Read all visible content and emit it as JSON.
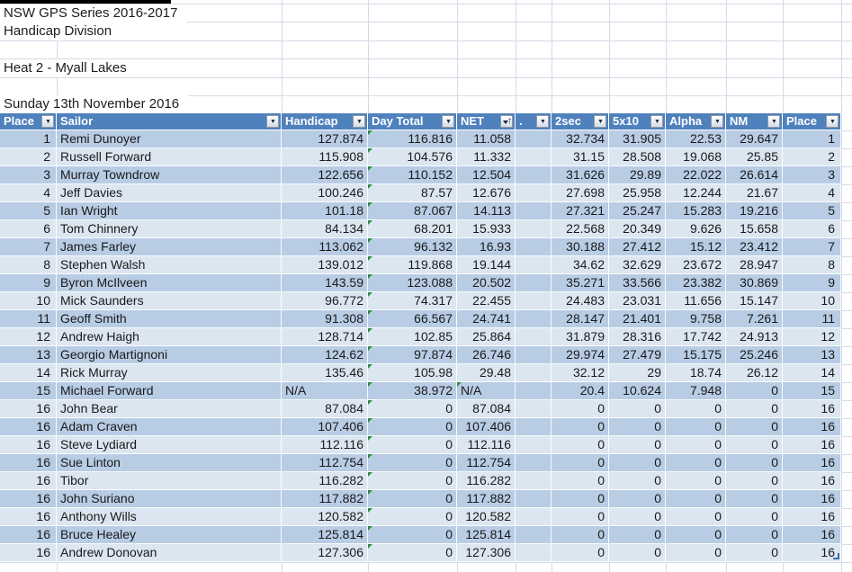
{
  "titles": {
    "series": "NSW GPS Series 2016-2017",
    "division": "Handicap Division",
    "heat": "Heat 2 - Myall Lakes",
    "date": "Sunday 13th November 2016"
  },
  "table": {
    "columns": [
      {
        "label": "Place",
        "filter": "dropdown"
      },
      {
        "label": "Sailor",
        "filter": "dropdown"
      },
      {
        "label": "Handicap",
        "filter": "dropdown"
      },
      {
        "label": "Day Total",
        "filter": "dropdown"
      },
      {
        "label": "NET",
        "filter": "sort-asc"
      },
      {
        "label": ".",
        "filter": "dropdown"
      },
      {
        "label": "2sec",
        "filter": "dropdown"
      },
      {
        "label": "5x10",
        "filter": "dropdown"
      },
      {
        "label": "Alpha",
        "filter": "dropdown"
      },
      {
        "label": "NM",
        "filter": "dropdown"
      },
      {
        "label": "Place",
        "filter": "dropdown"
      }
    ],
    "rows": [
      [
        "1",
        "Remi Dunoyer",
        "127.874",
        "116.816",
        "11.058",
        "",
        "32.734",
        "31.905",
        "22.53",
        "29.647",
        "1"
      ],
      [
        "2",
        "Russell Forward",
        "115.908",
        "104.576",
        "11.332",
        "",
        "31.15",
        "28.508",
        "19.068",
        "25.85",
        "2"
      ],
      [
        "3",
        "Murray Towndrow",
        "122.656",
        "110.152",
        "12.504",
        "",
        "31.626",
        "29.89",
        "22.022",
        "26.614",
        "3"
      ],
      [
        "4",
        "Jeff Davies",
        "100.246",
        "87.57",
        "12.676",
        "",
        "27.698",
        "25.958",
        "12.244",
        "21.67",
        "4"
      ],
      [
        "5",
        "Ian Wright",
        "101.18",
        "87.067",
        "14.113",
        "",
        "27.321",
        "25.247",
        "15.283",
        "19.216",
        "5"
      ],
      [
        "6",
        "Tom Chinnery",
        "84.134",
        "68.201",
        "15.933",
        "",
        "22.568",
        "20.349",
        "9.626",
        "15.658",
        "6"
      ],
      [
        "7",
        "James Farley",
        "113.062",
        "96.132",
        "16.93",
        "",
        "30.188",
        "27.412",
        "15.12",
        "23.412",
        "7"
      ],
      [
        "8",
        "Stephen Walsh",
        "139.012",
        "119.868",
        "19.144",
        "",
        "34.62",
        "32.629",
        "23.672",
        "28.947",
        "8"
      ],
      [
        "9",
        "Byron McIlveen",
        "143.59",
        "123.088",
        "20.502",
        "",
        "35.271",
        "33.566",
        "23.382",
        "30.869",
        "9"
      ],
      [
        "10",
        "Mick Saunders",
        "96.772",
        "74.317",
        "22.455",
        "",
        "24.483",
        "23.031",
        "11.656",
        "15.147",
        "10"
      ],
      [
        "11",
        "Geoff Smith",
        "91.308",
        "66.567",
        "24.741",
        "",
        "28.147",
        "21.401",
        "9.758",
        "7.261",
        "11"
      ],
      [
        "12",
        "Andrew Haigh",
        "128.714",
        "102.85",
        "25.864",
        "",
        "31.879",
        "28.316",
        "17.742",
        "24.913",
        "12"
      ],
      [
        "13",
        "Georgio Martignoni",
        "124.62",
        "97.874",
        "26.746",
        "",
        "29.974",
        "27.479",
        "15.175",
        "25.246",
        "13"
      ],
      [
        "14",
        "Rick Murray",
        "135.46",
        "105.98",
        "29.48",
        "",
        "32.12",
        "29",
        "18.74",
        "26.12",
        "14"
      ],
      [
        "15",
        "Michael Forward",
        "N/A",
        "38.972",
        "N/A",
        "",
        "20.4",
        "10.624",
        "7.948",
        "0",
        "15"
      ],
      [
        "16",
        "John Bear",
        "87.084",
        "0",
        "87.084",
        "",
        "0",
        "0",
        "0",
        "0",
        "16"
      ],
      [
        "16",
        "Adam Craven",
        "107.406",
        "0",
        "107.406",
        "",
        "0",
        "0",
        "0",
        "0",
        "16"
      ],
      [
        "16",
        "Steve Lydiard",
        "112.116",
        "0",
        "112.116",
        "",
        "0",
        "0",
        "0",
        "0",
        "16"
      ],
      [
        "16",
        "Sue Linton",
        "112.754",
        "0",
        "112.754",
        "",
        "0",
        "0",
        "0",
        "0",
        "16"
      ],
      [
        "16",
        "Tibor",
        "116.282",
        "0",
        "116.282",
        "",
        "0",
        "0",
        "0",
        "0",
        "16"
      ],
      [
        "16",
        "John Suriano",
        "117.882",
        "0",
        "117.882",
        "",
        "0",
        "0",
        "0",
        "0",
        "16"
      ],
      [
        "16",
        "Anthony Wills",
        "120.582",
        "0",
        "120.582",
        "",
        "0",
        "0",
        "0",
        "0",
        "16"
      ],
      [
        "16",
        "Bruce Healey",
        "125.814",
        "0",
        "125.814",
        "",
        "0",
        "0",
        "0",
        "0",
        "16"
      ],
      [
        "16",
        "Andrew Donovan",
        "127.306",
        "0",
        "127.306",
        "",
        "0",
        "0",
        "0",
        "0",
        "16"
      ]
    ]
  },
  "colors": {
    "header_bg": "#4f81bd",
    "band_dark": "#b8cce4",
    "band_light": "#dce6f1",
    "gridline": "#d4dbe6",
    "error_triangle": "#2e8b3f",
    "resize_handle": "#3a6ea5",
    "top_border": "#000000"
  }
}
